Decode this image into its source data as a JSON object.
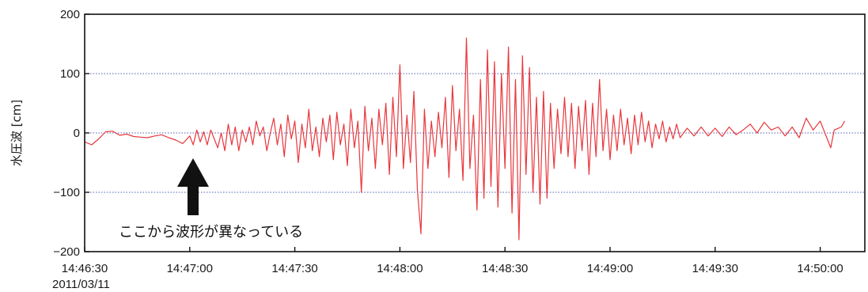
{
  "chart_data": {
    "type": "line",
    "title": "",
    "xlabel": "",
    "ylabel": "水圧波 [cm]",
    "date_label": "2011/03/11",
    "x_ticks": [
      "14:46:30",
      "14:47:00",
      "14:47:30",
      "14:48:00",
      "14:48:30",
      "14:49:00",
      "14:49:30",
      "14:50:00"
    ],
    "y_ticks": [
      "200",
      "100",
      "0",
      "−100",
      "−200"
    ],
    "y_tick_values": [
      200,
      100,
      0,
      -100,
      -200
    ],
    "ylim": [
      -200,
      200
    ],
    "xlim": [
      "14:46:30",
      "14:50:06"
    ],
    "grid": "horizontal dotted",
    "line_color": "#e8373c",
    "annotation": {
      "text": "ここから波形が異なっている",
      "points_to": "14:47:00"
    },
    "series": [
      {
        "values_cm": [
          [
            0,
            -15
          ],
          [
            2,
            -20
          ],
          [
            4,
            -10
          ],
          [
            6,
            2
          ],
          [
            8,
            3
          ],
          [
            10,
            -4
          ],
          [
            12,
            -2
          ],
          [
            14,
            -6
          ],
          [
            16,
            -7
          ],
          [
            18,
            -8
          ],
          [
            20,
            -5
          ],
          [
            22,
            -3
          ],
          [
            24,
            -8
          ],
          [
            26,
            -12
          ],
          [
            28,
            -18
          ],
          [
            30,
            -5
          ],
          [
            31,
            -20
          ],
          [
            32,
            5
          ],
          [
            33,
            -15
          ],
          [
            34,
            2
          ],
          [
            35,
            -20
          ],
          [
            36,
            5
          ],
          [
            37,
            -10
          ],
          [
            38,
            -25
          ],
          [
            39,
            0
          ],
          [
            40,
            -30
          ],
          [
            41,
            15
          ],
          [
            42,
            -20
          ],
          [
            43,
            10
          ],
          [
            44,
            -30
          ],
          [
            45,
            5
          ],
          [
            46,
            -15
          ],
          [
            47,
            10
          ],
          [
            48,
            -20
          ],
          [
            49,
            20
          ],
          [
            50,
            -5
          ],
          [
            51,
            10
          ],
          [
            52,
            -30
          ],
          [
            53,
            0
          ],
          [
            54,
            25
          ],
          [
            55,
            -20
          ],
          [
            56,
            15
          ],
          [
            57,
            -40
          ],
          [
            58,
            30
          ],
          [
            59,
            -10
          ],
          [
            60,
            20
          ],
          [
            61,
            -50
          ],
          [
            62,
            15
          ],
          [
            63,
            -25
          ],
          [
            64,
            40
          ],
          [
            65,
            -30
          ],
          [
            66,
            10
          ],
          [
            67,
            -40
          ],
          [
            68,
            25
          ],
          [
            69,
            -15
          ],
          [
            70,
            30
          ],
          [
            71,
            -45
          ],
          [
            72,
            35
          ],
          [
            73,
            -20
          ],
          [
            74,
            15
          ],
          [
            75,
            -55
          ],
          [
            76,
            40
          ],
          [
            77,
            -25
          ],
          [
            78,
            20
          ],
          [
            79,
            -100
          ],
          [
            80,
            45
          ],
          [
            81,
            -30
          ],
          [
            82,
            25
          ],
          [
            83,
            -60
          ],
          [
            84,
            40
          ],
          [
            85,
            -20
          ],
          [
            86,
            50
          ],
          [
            87,
            -70
          ],
          [
            88,
            60
          ],
          [
            89,
            -40
          ],
          [
            90,
            115
          ],
          [
            91,
            -60
          ],
          [
            92,
            30
          ],
          [
            93,
            -50
          ],
          [
            94,
            70
          ],
          [
            95,
            -95
          ],
          [
            96,
            -170
          ],
          [
            97,
            40
          ],
          [
            98,
            -60
          ],
          [
            99,
            20
          ],
          [
            100,
            -40
          ],
          [
            101,
            35
          ],
          [
            102,
            -25
          ],
          [
            103,
            60
          ],
          [
            104,
            -75
          ],
          [
            105,
            80
          ],
          [
            106,
            -30
          ],
          [
            107,
            40
          ],
          [
            108,
            -80
          ],
          [
            109,
            160
          ],
          [
            110,
            -60
          ],
          [
            111,
            30
          ],
          [
            112,
            -130
          ],
          [
            113,
            90
          ],
          [
            114,
            -110
          ],
          [
            115,
            140
          ],
          [
            116,
            -90
          ],
          [
            117,
            120
          ],
          [
            118,
            -125
          ],
          [
            119,
            100
          ],
          [
            120,
            -60
          ],
          [
            121,
            145
          ],
          [
            122,
            -135
          ],
          [
            123,
            90
          ],
          [
            124,
            -180
          ],
          [
            125,
            130
          ],
          [
            126,
            -70
          ],
          [
            127,
            110
          ],
          [
            128,
            -100
          ],
          [
            129,
            60
          ],
          [
            130,
            -120
          ],
          [
            131,
            70
          ],
          [
            132,
            -110
          ],
          [
            133,
            50
          ],
          [
            134,
            -60
          ],
          [
            135,
            40
          ],
          [
            136,
            -35
          ],
          [
            137,
            60
          ],
          [
            138,
            -40
          ],
          [
            139,
            50
          ],
          [
            140,
            -60
          ],
          [
            141,
            45
          ],
          [
            142,
            -30
          ],
          [
            143,
            55
          ],
          [
            144,
            -70
          ],
          [
            145,
            50
          ],
          [
            146,
            -40
          ],
          [
            147,
            90
          ],
          [
            148,
            -30
          ],
          [
            149,
            40
          ],
          [
            150,
            -45
          ],
          [
            151,
            30
          ],
          [
            152,
            -30
          ],
          [
            153,
            40
          ],
          [
            154,
            -20
          ],
          [
            155,
            25
          ],
          [
            156,
            -35
          ],
          [
            157,
            30
          ],
          [
            158,
            -20
          ],
          [
            159,
            35
          ],
          [
            160,
            -15
          ],
          [
            161,
            20
          ],
          [
            162,
            -25
          ],
          [
            163,
            15
          ],
          [
            164,
            -10
          ],
          [
            165,
            20
          ],
          [
            166,
            -15
          ],
          [
            167,
            10
          ],
          [
            168,
            -10
          ],
          [
            169,
            15
          ],
          [
            170,
            -8
          ],
          [
            172,
            8
          ],
          [
            174,
            -5
          ],
          [
            176,
            10
          ],
          [
            178,
            -5
          ],
          [
            180,
            8
          ],
          [
            182,
            -6
          ],
          [
            184,
            10
          ],
          [
            186,
            -3
          ],
          [
            188,
            5
          ],
          [
            190,
            15
          ],
          [
            192,
            0
          ],
          [
            194,
            18
          ],
          [
            196,
            5
          ],
          [
            198,
            10
          ],
          [
            200,
            -5
          ],
          [
            202,
            10
          ],
          [
            204,
            -8
          ],
          [
            206,
            25
          ],
          [
            208,
            5
          ],
          [
            210,
            20
          ],
          [
            212,
            -10
          ],
          [
            213,
            -25
          ],
          [
            214,
            5
          ],
          [
            216,
            10
          ],
          [
            217,
            20
          ]
        ]
      }
    ]
  }
}
